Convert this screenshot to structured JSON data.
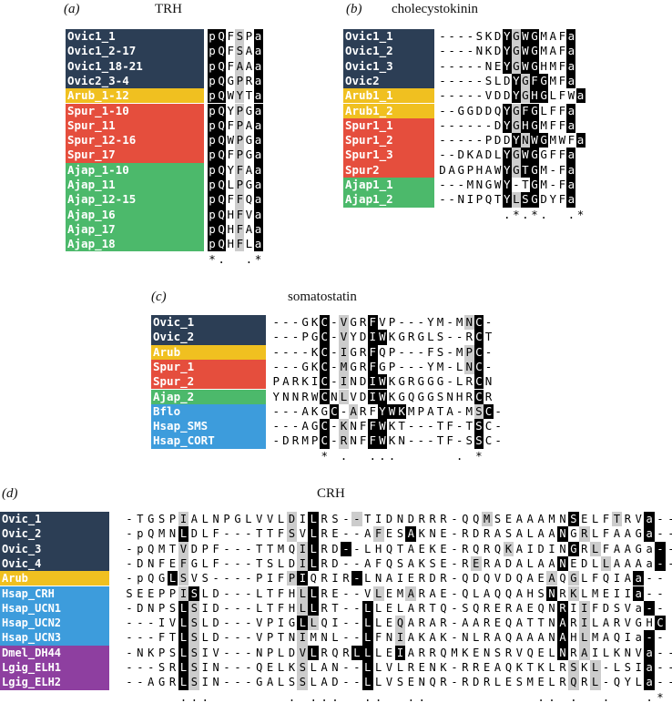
{
  "colors": {
    "Ovic": "#2c3e55",
    "Arub": "#f0c020",
    "Spur": "#e54e3d",
    "Ajap": "#4cb96b",
    "Chordate": "#3d9cdc",
    "Protostome": "#8e3fa0",
    "identity": "#000000",
    "similarity": "#cccccc"
  },
  "panels": [
    {
      "id": "a",
      "label": "(a)",
      "title": "TRH",
      "rows": [
        {
          "name": "Ovic1_1",
          "group": "Ovic",
          "seq": "pQFSPa",
          "shade": "BB.G.B"
        },
        {
          "name": "Ovic1_2-17",
          "group": "Ovic",
          "seq": "pQFSAa",
          "shade": "BB.G.B"
        },
        {
          "name": "Ovic1_18-21",
          "group": "Ovic",
          "seq": "pQFAAa",
          "shade": "BB.G.B"
        },
        {
          "name": "Ovic2_3-4",
          "group": "Ovic",
          "seq": "pQGPRa",
          "shade": "BB.G.B"
        },
        {
          "name": "Arub_1-12",
          "group": "Arub",
          "seq": "pQWYTa",
          "shade": "BB.G.B"
        },
        {
          "name": "Spur_1-10",
          "group": "Spur",
          "seq": "pQYPGa",
          "shade": "BB.G.B"
        },
        {
          "name": "Spur_11",
          "group": "Spur",
          "seq": "pQFPAa",
          "shade": "BB.G.B"
        },
        {
          "name": "Spur_12-16",
          "group": "Spur",
          "seq": "pQWPGa",
          "shade": "BB.G.B"
        },
        {
          "name": "Spur_17",
          "group": "Spur",
          "seq": "pQFPGa",
          "shade": "BB.G.B"
        },
        {
          "name": "Ajap_1-10",
          "group": "Ajap",
          "seq": "pQYFAa",
          "shade": "BB.G.B"
        },
        {
          "name": "Ajap_11",
          "group": "Ajap",
          "seq": "pQLPGa",
          "shade": "BB.G.B"
        },
        {
          "name": "Ajap_12-15",
          "group": "Ajap",
          "seq": "pQFFQa",
          "shade": "BB.G.B"
        },
        {
          "name": "Ajap_16",
          "group": "Ajap",
          "seq": "pQHFVa",
          "shade": "BB.G.B"
        },
        {
          "name": "Ajap_17",
          "group": "Ajap",
          "seq": "pQHFAa",
          "shade": "BB.G.B"
        },
        {
          "name": "Ajap_18",
          "group": "Ajap",
          "seq": "pQHFLa",
          "shade": "BB.G.B"
        }
      ],
      "consensus": "*.  .*"
    },
    {
      "id": "b",
      "label": "(b)",
      "title": "cholecystokinin",
      "rows": [
        {
          "name": "Ovic1_1",
          "group": "Ovic",
          "seq": "----SKDYGWGMAFa",
          "shade": ".......BGBB...B"
        },
        {
          "name": "Ovic1_2",
          "group": "Ovic",
          "seq": "----NKDYGWGMAFa",
          "shade": ".......BGBB...B"
        },
        {
          "name": "Ovic1_3",
          "group": "Ovic",
          "seq": "-----NEYGWGHMFa",
          "shade": ".......BGBB...B"
        },
        {
          "name": "Ovic2",
          "group": "Ovic",
          "seq": "-----SLDYGFGMFa",
          "shade": "........BGBB..B"
        },
        {
          "name": "Arub1_1",
          "group": "Arub",
          "seq": "-----VDDYGHGLFWa",
          "shade": "........BGBB...B"
        },
        {
          "name": "Arub1_2",
          "group": "Arub",
          "seq": "--GGDDQYGFGLFFa",
          "shade": ".......BGBB...B"
        },
        {
          "name": "Spur1_1",
          "group": "Spur",
          "seq": "------DYGHGMFFa",
          "shade": ".......BGBB...B"
        },
        {
          "name": "Spur1_2",
          "group": "Spur",
          "seq": "-----PDDYNWGMWFa",
          "shade": "........BGBB...B"
        },
        {
          "name": "Spur1_3",
          "group": "Spur",
          "seq": "--DKADLYGWGGFFa",
          "shade": ".......BGBB...B"
        },
        {
          "name": "Spur2",
          "group": "Spur",
          "seq": "DAGPHAWYGTGM-Fa",
          "shade": ".......BGBB...B"
        },
        {
          "name": "Ajap1_1",
          "group": "Ajap",
          "seq": "---MNGWY-TGM-Fa",
          "shade": ".......B..B...B"
        },
        {
          "name": "Ajap1_2",
          "group": "Ajap",
          "seq": "--NIPQTYLSGDYFa",
          "shade": ".......BGBB...B"
        }
      ],
      "consensus": "       .*.*.  .*"
    },
    {
      "id": "c",
      "label": "(c)",
      "title": "somatostatin",
      "rows": [
        {
          "name": "Ovic_1",
          "group": "Ovic",
          "seq": "---GKC-VGRFVP---YM-MNC-",
          "shade": ".....B.G..B.........GB."
        },
        {
          "name": "Ovic_2",
          "group": "Ovic",
          "seq": "---PGC-VYDIWKGRGLS--RCT",
          "shade": ".....B.G..BB.........B."
        },
        {
          "name": "Arub",
          "group": "Arub",
          "seq": "----KC-IGRFQP---FS-MPC-",
          "shade": ".....B.G..B.........GB."
        },
        {
          "name": "Spur_1",
          "group": "Spur",
          "seq": "---GKC-MGRFGP---YM-LNC-",
          "shade": ".....B.G..B.........GB."
        },
        {
          "name": "Spur_2",
          "group": "Spur",
          "seq": "PARKIC-INDIWKGRGGG-LRCN",
          "shade": ".....B.G..BB.........B."
        },
        {
          "name": "Ajap_2",
          "group": "Ajap",
          "seq": "YNNRWCNLVDIWKGQGGSNHRCR",
          "shade": ".....B.G..BB.........B."
        },
        {
          "name": "Bflo",
          "group": "Chordate",
          "seq": "---AKGC-ARFYWKMPATA-MSC-",
          "shade": "......B.G..BBB.......GB."
        },
        {
          "name": "Hsap_SMS",
          "group": "Chordate",
          "seq": "---AGC-KNFFWKT---TF-TSC-",
          "shade": ".....B.G..BB.........B."
        },
        {
          "name": "Hsap_CORT",
          "group": "Chordate",
          "seq": "-DRMPC-RNFFWKN---TF-SSC-",
          "shade": ".....B.G..BB.........B."
        }
      ],
      "consensus": "     * .  ...      . * "
    },
    {
      "id": "d",
      "label": "(d)",
      "title": "CRH",
      "rows": [
        {
          "name": "Ovic_1",
          "group": "Ovic",
          "seq": "-TGSPIALNPGLVVLDILRS--TIDNDRRR-QQMSEAAAMNSELFTRVa--",
          "shade": ".....G.........G.B...G...........G.......B...G..B.."
        },
        {
          "name": "Ovic_2",
          "group": "Ovic",
          "seq": "-pQMNLDLF---TTFSVLRE--AFESAKNE-RDRASALAANGRLFAAGa--",
          "shade": ".....B.........G.B.....G..B.............B.G.....B.."
        },
        {
          "name": "Ovic_3",
          "group": "Ovic",
          "seq": "-pQMTVDPF---TTMQILRD--LHQTAEKE-RQRQKAIDINGRLFAAGa--",
          "shade": ".....G..........GB..B..............G.....B.G.....B.."
        },
        {
          "name": "Ovic_4",
          "group": "Ovic",
          "seq": "-DNFEFGLF---TSLDILRD--AFQSAKSE-RERADALAANEDLLAAAa--",
          "shade": ".....G..........GB..............G.......B...G....B.."
        },
        {
          "name": "Arub",
          "group": "Arub",
          "seq": "-pQGLSVS----PIFPIQRIR-LNAIERDR-QDQVDQAEAQGLFQIAa--",
          "shade": "....BG.........GB....B.................G.G.....B.."
        },
        {
          "name": "Hsap_CRH",
          "group": "Chordate",
          "seq": "SEEPPISLD---LTFHLLRE--VLEMARAE-QLAQQAHSNRKLMEIIa--",
          "shade": ".....GB.........GB.....G..G............B.G.....B.."
        },
        {
          "name": "Hsap_UCN1",
          "group": "Chordate",
          "seq": "-DNPSLSID---LTFHLLRT--LLELARTQ-SQRERAEQNRIIFDSVa--",
          "shade": ".....BG.........GB....B.................B.G.....B.."
        },
        {
          "name": "Hsap_UCN2",
          "group": "Chordate",
          "seq": "---IVLSLD---VPIGLLQI--LLEQARAR-AAREQATTNARILARVGHC",
          "shade": ".....BG.........BG....B..G..............B.G......B."
        },
        {
          "name": "Hsap_UCN3",
          "group": "Chordate",
          "seq": "---FTLSLD---VPTNIMNL--LFNIAKAK-NLRAQAAANAHLMAQIa--",
          "shade": ".....BG.........G.....B..G..............B.G.....B.."
        },
        {
          "name": "Dmel_DH44",
          "group": "Protostome",
          "seq": "-NKPSLSIV---NPLDVLRQRLLLEIARRQMKENSRVQELNRAILKNVa--",
          "shade": ".....BG.........GB...BB..B..............B.G.....B.."
        },
        {
          "name": "Lgig_ELH1",
          "group": "Protostome",
          "seq": "---SRLSIN---QELKSLAN--LLVLRENK-RREAQKTKLRSKL-LSIa--",
          "shade": ".....BG.........G.....B..................G.G....B.."
        },
        {
          "name": "Lgig_ELH2",
          "group": "Protostome",
          "seq": "--AGRLSIN---GALSSLAD--LLVSENQR-RDRLESMELRQRL-QYLa--",
          "shade": ".....BG.........G.....B..................G.G....B.."
        }
      ],
      "consensus": "     ...       . ...  ..  ..          .. .  .   .*"
    }
  ]
}
